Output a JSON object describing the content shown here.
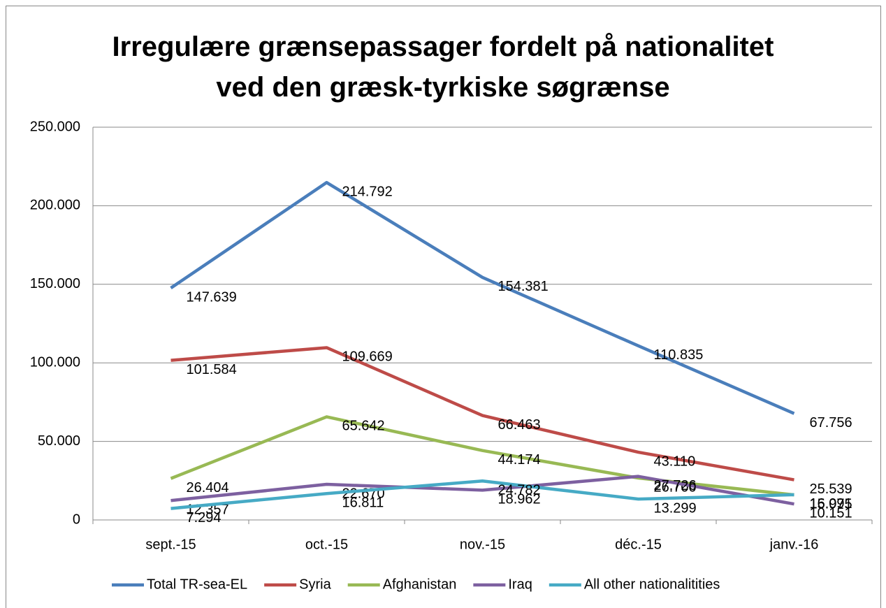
{
  "chart_data": {
    "type": "line",
    "title": "Irregulære grænsepassager fordelt på nationalitet ved den græsk-tyrkiske søgrænse",
    "categories": [
      "sept.-15",
      "oct.-15",
      "nov.-15",
      "déc.-15",
      "janv.-16"
    ],
    "series": [
      {
        "name": "Total TR-sea-EL",
        "color": "#4a7ebb",
        "values": [
          147639,
          214792,
          154381,
          110835,
          67756
        ],
        "value_labels": [
          "147.639",
          "214.792",
          "154.381",
          "110.835",
          "67.756"
        ]
      },
      {
        "name": "Syria",
        "color": "#be4b48",
        "values": [
          101584,
          109669,
          66463,
          43110,
          25539
        ],
        "value_labels": [
          "101.584",
          "109.669",
          "66.463",
          "43.110",
          "25.539"
        ]
      },
      {
        "name": "Afghanistan",
        "color": "#98b954",
        "values": [
          26404,
          65642,
          44174,
          26700,
          15975
        ],
        "value_labels": [
          "26.404",
          "65.642",
          "44.174",
          "26.700",
          "15.975"
        ]
      },
      {
        "name": "Iraq",
        "color": "#7d60a0",
        "values": [
          12357,
          22670,
          18962,
          27726,
          10151
        ],
        "value_labels": [
          "12.357",
          "22.670",
          "18.962",
          "27.726",
          "10.151"
        ]
      },
      {
        "name": "All other nationalitities",
        "color": "#46aac5",
        "values": [
          7294,
          16811,
          24782,
          13299,
          16091
        ],
        "value_labels": [
          "7.294",
          "16.811",
          "24.782",
          "13.299",
          "16.091"
        ]
      }
    ],
    "ylim": [
      0,
      250000
    ],
    "yticks": [
      0,
      {
        "value": 50000,
        "label": "50.000"
      },
      {
        "value": 100000,
        "label": "100.000"
      },
      {
        "value": 150000,
        "label": "150.000"
      },
      {
        "value": 200000,
        "label": "200.000"
      },
      {
        "value": 250000,
        "label": "250.000"
      }
    ],
    "grid": true,
    "legend": "bottom"
  }
}
